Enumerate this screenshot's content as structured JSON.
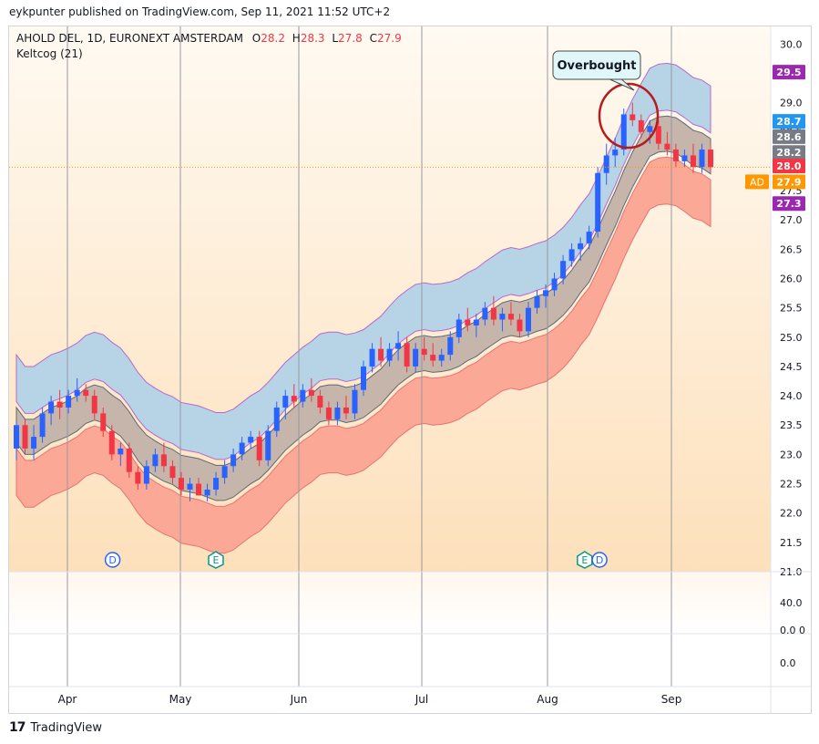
{
  "header": {
    "published_line": "eykpunter published on TradingView.com, Sep 11, 2021 11:52 UTC+2",
    "instrument": "AHOLD DEL, 1D, EURONEXT AMSTERDAM",
    "ohlc": [
      {
        "key": "O",
        "value": "28.2"
      },
      {
        "key": "H",
        "value": "28.3"
      },
      {
        "key": "L",
        "value": "27.8"
      },
      {
        "key": "C",
        "value": "27.9"
      }
    ],
    "indicator": "Keltcog (21)"
  },
  "annotation": {
    "label": "Overbought"
  },
  "markers": [
    {
      "label": "D",
      "month_pos": 1.4
    },
    {
      "label": "E",
      "month_pos": 2.3
    },
    {
      "label": "E",
      "month_pos": 5.3
    },
    {
      "label": "D",
      "month_pos": 5.42
    }
  ],
  "chart_data": {
    "type": "candlestick",
    "x_labels": [
      "Apr",
      "May",
      "Jun",
      "Jul",
      "Aug",
      "Sep"
    ],
    "ylim": [
      21.0,
      30.3
    ],
    "y_ticks": [
      "30.0",
      "29.5",
      "29.0",
      "28.5",
      "28.0",
      "27.5",
      "27.0",
      "26.5",
      "26.0",
      "25.5",
      "25.0",
      "24.5",
      "24.0",
      "23.5",
      "23.0",
      "22.5",
      "22.0",
      "21.5",
      "21.0"
    ],
    "price_tags": [
      {
        "label": "29.5",
        "value": 29.52,
        "color": "#9c27b0"
      },
      {
        "label": "28.7",
        "value": 28.68,
        "color": "#2196f3"
      },
      {
        "label": "28.6",
        "value": 28.42,
        "color": "#787b86"
      },
      {
        "label": "28.2",
        "value": 28.15,
        "color": "#787b86"
      },
      {
        "label": "28.0",
        "value": 27.92,
        "color": "#f23645"
      },
      {
        "label": "27.9",
        "value": 27.65,
        "color": "#ff9800",
        "prefix": "AD"
      },
      {
        "label": "27.3",
        "value": 27.28,
        "color": "#9c27b0"
      }
    ],
    "last_price": 27.9,
    "pane2_ticks": [
      "40.0",
      "0.0 0"
    ],
    "pane3_ticks": [
      "0.0"
    ],
    "grid": "vertical-at-month-starts",
    "candles": [
      [
        23.1,
        23.6,
        22.9,
        23.5
      ],
      [
        23.5,
        23.6,
        23.0,
        23.1
      ],
      [
        23.1,
        23.5,
        22.9,
        23.3
      ],
      [
        23.3,
        23.8,
        23.2,
        23.7
      ],
      [
        23.7,
        24.0,
        23.5,
        23.9
      ],
      [
        23.9,
        24.1,
        23.6,
        23.8
      ],
      [
        23.8,
        24.1,
        23.7,
        24.0
      ],
      [
        24.0,
        24.3,
        23.9,
        24.1
      ],
      [
        24.1,
        24.2,
        23.9,
        24.0
      ],
      [
        24.0,
        24.1,
        23.6,
        23.7
      ],
      [
        23.7,
        23.8,
        23.3,
        23.4
      ],
      [
        23.4,
        23.5,
        22.9,
        23.0
      ],
      [
        23.0,
        23.2,
        22.8,
        23.1
      ],
      [
        23.1,
        23.2,
        22.6,
        22.7
      ],
      [
        22.7,
        22.8,
        22.4,
        22.5
      ],
      [
        22.5,
        22.9,
        22.4,
        22.8
      ],
      [
        22.8,
        23.1,
        22.7,
        23.0
      ],
      [
        23.0,
        23.2,
        22.7,
        22.8
      ],
      [
        22.8,
        22.9,
        22.5,
        22.6
      ],
      [
        22.6,
        22.7,
        22.3,
        22.4
      ],
      [
        22.4,
        22.6,
        22.2,
        22.5
      ],
      [
        22.5,
        22.6,
        22.3,
        22.3
      ],
      [
        22.3,
        22.5,
        22.2,
        22.4
      ],
      [
        22.4,
        22.7,
        22.3,
        22.6
      ],
      [
        22.6,
        22.9,
        22.5,
        22.8
      ],
      [
        22.8,
        23.1,
        22.7,
        23.0
      ],
      [
        23.0,
        23.3,
        22.9,
        23.2
      ],
      [
        23.2,
        23.4,
        23.1,
        23.3
      ],
      [
        23.3,
        23.4,
        22.8,
        22.9
      ],
      [
        22.9,
        23.5,
        22.8,
        23.4
      ],
      [
        23.4,
        23.9,
        23.3,
        23.8
      ],
      [
        23.8,
        24.1,
        23.6,
        24.0
      ],
      [
        24.0,
        24.2,
        23.8,
        23.9
      ],
      [
        23.9,
        24.2,
        23.8,
        24.1
      ],
      [
        24.1,
        24.3,
        23.9,
        24.0
      ],
      [
        24.0,
        24.1,
        23.7,
        23.8
      ],
      [
        23.8,
        23.9,
        23.5,
        23.6
      ],
      [
        23.6,
        23.9,
        23.5,
        23.8
      ],
      [
        23.8,
        24.0,
        23.6,
        23.7
      ],
      [
        23.7,
        24.2,
        23.6,
        24.1
      ],
      [
        24.1,
        24.6,
        24.0,
        24.5
      ],
      [
        24.5,
        24.9,
        24.4,
        24.8
      ],
      [
        24.8,
        25.0,
        24.5,
        24.6
      ],
      [
        24.6,
        24.9,
        24.5,
        24.8
      ],
      [
        24.8,
        25.1,
        24.6,
        24.9
      ],
      [
        24.9,
        25.0,
        24.4,
        24.5
      ],
      [
        24.5,
        24.9,
        24.4,
        24.8
      ],
      [
        24.8,
        25.0,
        24.6,
        24.7
      ],
      [
        24.7,
        24.9,
        24.5,
        24.6
      ],
      [
        24.6,
        24.8,
        24.5,
        24.7
      ],
      [
        24.7,
        25.1,
        24.6,
        25.0
      ],
      [
        25.0,
        25.4,
        24.9,
        25.3
      ],
      [
        25.3,
        25.5,
        25.1,
        25.2
      ],
      [
        25.2,
        25.4,
        25.0,
        25.3
      ],
      [
        25.3,
        25.6,
        25.2,
        25.5
      ],
      [
        25.5,
        25.7,
        25.2,
        25.3
      ],
      [
        25.3,
        25.5,
        25.1,
        25.4
      ],
      [
        25.4,
        25.6,
        25.2,
        25.3
      ],
      [
        25.3,
        25.4,
        25.0,
        25.1
      ],
      [
        25.1,
        25.6,
        25.0,
        25.5
      ],
      [
        25.5,
        25.8,
        25.4,
        25.7
      ],
      [
        25.7,
        25.9,
        25.5,
        25.8
      ],
      [
        25.8,
        26.1,
        25.7,
        26.0
      ],
      [
        26.0,
        26.4,
        25.9,
        26.3
      ],
      [
        26.3,
        26.6,
        26.2,
        26.5
      ],
      [
        26.5,
        26.7,
        26.3,
        26.6
      ],
      [
        26.6,
        26.9,
        26.5,
        26.8
      ],
      [
        26.8,
        27.9,
        26.7,
        27.8
      ],
      [
        27.8,
        28.3,
        27.6,
        28.1
      ],
      [
        28.1,
        28.4,
        27.9,
        28.2
      ],
      [
        28.2,
        28.9,
        28.1,
        28.8
      ],
      [
        28.8,
        29.0,
        28.6,
        28.7
      ],
      [
        28.7,
        28.8,
        28.4,
        28.5
      ],
      [
        28.5,
        28.7,
        28.3,
        28.6
      ],
      [
        28.6,
        28.7,
        28.2,
        28.3
      ],
      [
        28.3,
        28.5,
        28.1,
        28.2
      ],
      [
        28.2,
        28.3,
        27.9,
        28.0
      ],
      [
        28.0,
        28.2,
        27.9,
        28.1
      ],
      [
        28.1,
        28.3,
        27.8,
        27.9
      ],
      [
        27.9,
        28.3,
        27.8,
        28.2
      ],
      [
        28.2,
        28.3,
        27.8,
        27.9
      ]
    ]
  }
}
